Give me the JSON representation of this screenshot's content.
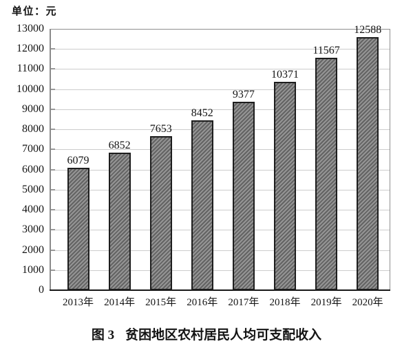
{
  "unit_label": "单位：元",
  "caption": {
    "figure_label": "图 3",
    "title": "贫困地区农村居民人均可支配收入"
  },
  "chart_data": {
    "type": "bar",
    "title": "图 3 贫困地区农村居民人均可支配收入",
    "unit_label": "单位：元",
    "ylabel": "",
    "xlabel": "",
    "categories": [
      "2013年",
      "2014年",
      "2015年",
      "2016年",
      "2017年",
      "2018年",
      "2019年",
      "2020年"
    ],
    "values": [
      6079,
      6852,
      7653,
      8452,
      9377,
      10371,
      11567,
      12588
    ],
    "ylim": [
      0,
      13000
    ],
    "ytick_step": 1000,
    "yticks": [
      0,
      1000,
      2000,
      3000,
      4000,
      5000,
      6000,
      7000,
      8000,
      9000,
      10000,
      11000,
      12000,
      13000
    ],
    "grid": true,
    "legend": "none",
    "bar_style": {
      "fill": "#7f7f7f",
      "hatch": "diagonal-forward",
      "border": "#1d1d1d",
      "gridline_color": "#cccccc",
      "axis_color": "#8a8a8a",
      "baseline_color": "#161616"
    }
  }
}
